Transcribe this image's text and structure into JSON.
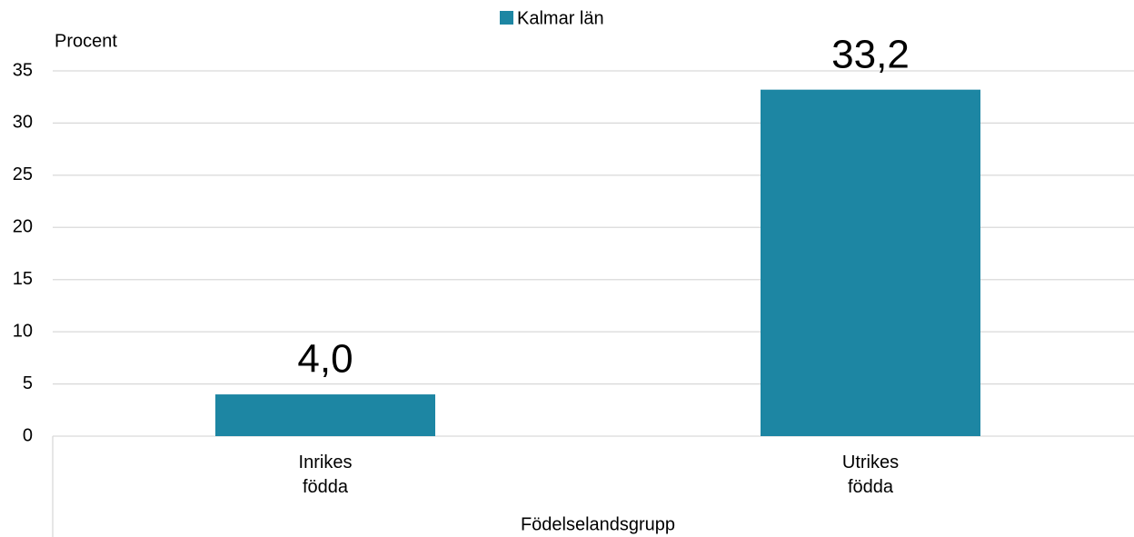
{
  "chart_data": {
    "type": "bar",
    "categories": [
      "Inrikes\nfödda",
      "Utrikes\nfödda"
    ],
    "series": [
      {
        "name": "Kalmar län",
        "color": "#1d86a3",
        "values": [
          4.0,
          33.2
        ],
        "value_labels": [
          "4,0",
          "33,2"
        ]
      }
    ],
    "y_axis_label": "Procent",
    "x_axis_label": "Födelselandsgrupp",
    "ylim": [
      0,
      35
    ],
    "yticks": [
      0,
      5,
      10,
      15,
      20,
      25,
      30,
      35
    ],
    "grid": true,
    "legend": "top"
  }
}
